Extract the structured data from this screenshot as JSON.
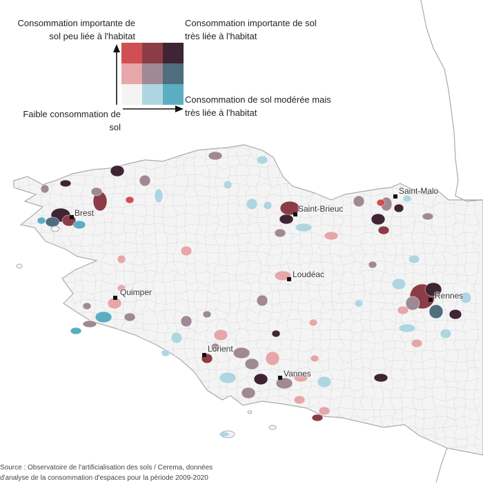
{
  "legend": {
    "top_left": "Consommation importante de sol peu liée à l'habitat",
    "top_right": "Consommation importante de sol très liée à l'habitat",
    "bottom_right": "Consommation de sol modérée mais très liée à l'habitat",
    "bottom_left": "Faible consommation de sol",
    "grid_colors": [
      [
        "#cf4f55",
        "#8c3c46",
        "#3f2533"
      ],
      [
        "#e6a6aa",
        "#9f8993",
        "#4f6d7c"
      ],
      [
        "#f4f4f4",
        "#aed6e2",
        "#5baec2"
      ]
    ]
  },
  "cities": [
    {
      "name": "Saint-Malo"
    },
    {
      "name": "Brest"
    },
    {
      "name": "Saint-Brieuc"
    },
    {
      "name": "Loudéac"
    },
    {
      "name": "Quimper"
    },
    {
      "name": "Rennes"
    },
    {
      "name": "Lorient"
    },
    {
      "name": "Vannes"
    }
  ],
  "source": {
    "line1": "Source : Observatoire de l'artificialisation des sols / Cerema, données",
    "line2": "d'analyse de la consommation d'espaces pour la période 2009-2020"
  },
  "colors": {
    "land": "#f4f4f4",
    "outline": "#a9a9a9",
    "commune_borders": "#dcdcdc"
  }
}
